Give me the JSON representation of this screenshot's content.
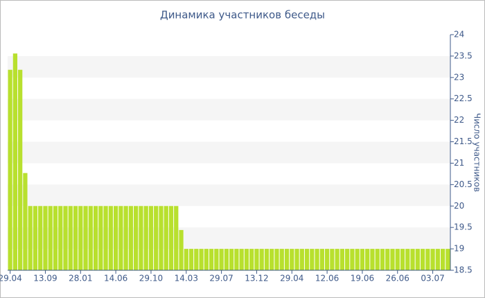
{
  "chart_data": {
    "type": "bar",
    "title": "Динамика участников беседы",
    "y_label": "Число участников",
    "categories": [
      "29.04",
      null,
      null,
      null,
      null,
      null,
      null,
      "13.09",
      null,
      null,
      null,
      null,
      null,
      null,
      "28.01",
      null,
      null,
      null,
      null,
      null,
      null,
      "14.06",
      null,
      null,
      null,
      null,
      null,
      null,
      "29.10",
      null,
      null,
      null,
      null,
      null,
      null,
      "14.03",
      null,
      null,
      null,
      null,
      null,
      null,
      "29.07",
      null,
      null,
      null,
      null,
      null,
      null,
      "13.12",
      null,
      null,
      null,
      null,
      null,
      null,
      "29.04",
      null,
      null,
      null,
      null,
      null,
      null,
      "12.06",
      null,
      null,
      null,
      null,
      null,
      null,
      "19.06",
      null,
      null,
      null,
      null,
      null,
      null,
      "26.06",
      null,
      null,
      null,
      null,
      null,
      null,
      "03.07",
      null,
      null,
      null
    ],
    "values": [
      23.18,
      23.56,
      23.18,
      20.77,
      20,
      20,
      20,
      20,
      20,
      20,
      20,
      20,
      20,
      20,
      20,
      20,
      20,
      20,
      20,
      20,
      20,
      20,
      20,
      20,
      20,
      20,
      20,
      20,
      20,
      20,
      20,
      20,
      20,
      20,
      19.44,
      19,
      19,
      19,
      19,
      19,
      19,
      19,
      19,
      19,
      19,
      19,
      19,
      19,
      19,
      19,
      19,
      19,
      19,
      19,
      19,
      19,
      19,
      19,
      19,
      19,
      19,
      19,
      19,
      19,
      19,
      19,
      19,
      19,
      19,
      19,
      19,
      19,
      19,
      19,
      19,
      19,
      19,
      19,
      19,
      19,
      19,
      19,
      19,
      19,
      19,
      19,
      19,
      19
    ],
    "color": "#b8e02e",
    "ylim": [
      18.5,
      24
    ],
    "yticks": [
      18.5,
      19,
      19.5,
      20,
      20.5,
      21,
      21.5,
      22,
      22.5,
      23,
      23.5,
      24
    ],
    "grid": "bands",
    "y_axis_side": "right"
  }
}
